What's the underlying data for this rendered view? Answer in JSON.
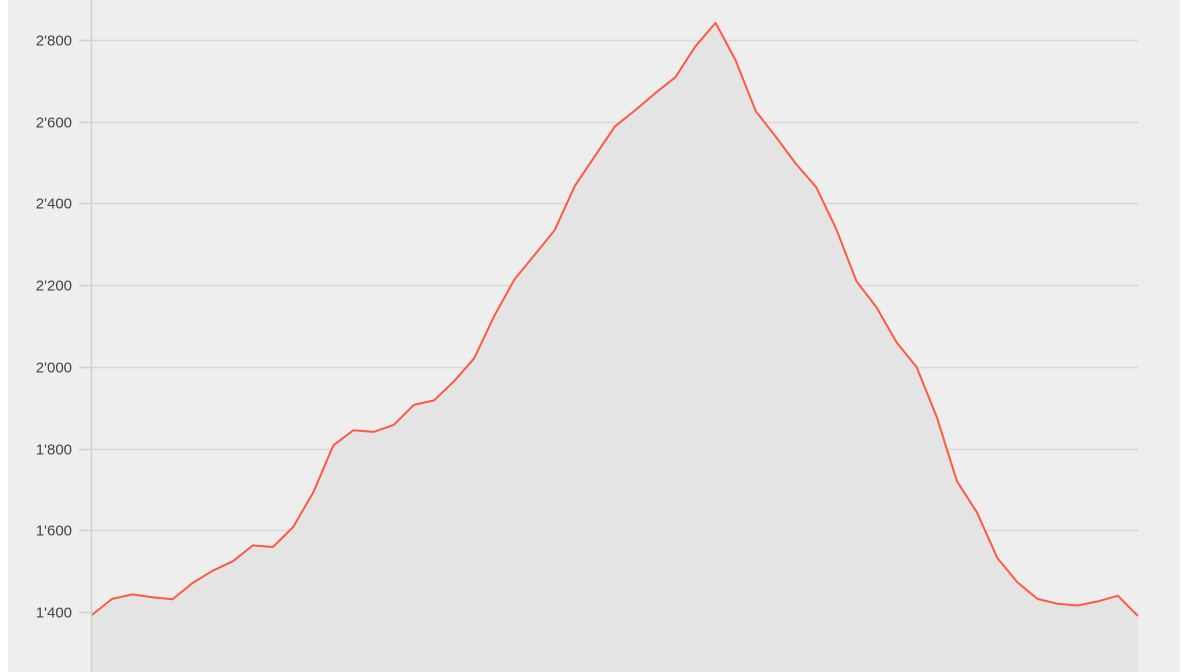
{
  "chart_data": {
    "type": "area",
    "title": "",
    "xlabel": "",
    "ylabel": "",
    "ylim": [
      1400,
      2800
    ],
    "yticks": [
      "1'400",
      "1'600",
      "1'800",
      "2'000",
      "2'200",
      "2'400",
      "2'600",
      "2'800"
    ],
    "ytick_values": [
      1400,
      1600,
      1800,
      2000,
      2200,
      2400,
      2600,
      2800
    ],
    "grid": true,
    "line_color": "#ff5a40",
    "fill_color": "#e4e4e4",
    "background_color": "#eeeeee",
    "values": [
      1393,
      1432,
      1443,
      1436,
      1431,
      1471,
      1501,
      1524,
      1563,
      1559,
      1608,
      1693,
      1808,
      1845,
      1841,
      1858,
      1907,
      1918,
      1965,
      2021,
      2125,
      2214,
      2274,
      2335,
      2443,
      2516,
      2589,
      2628,
      2670,
      2709,
      2785,
      2842,
      2750,
      2626,
      2563,
      2497,
      2440,
      2337,
      2210,
      2146,
      2060,
      1999,
      1877,
      1720,
      1643,
      1533,
      1473,
      1432,
      1420,
      1416,
      1426,
      1440,
      1390
    ]
  }
}
